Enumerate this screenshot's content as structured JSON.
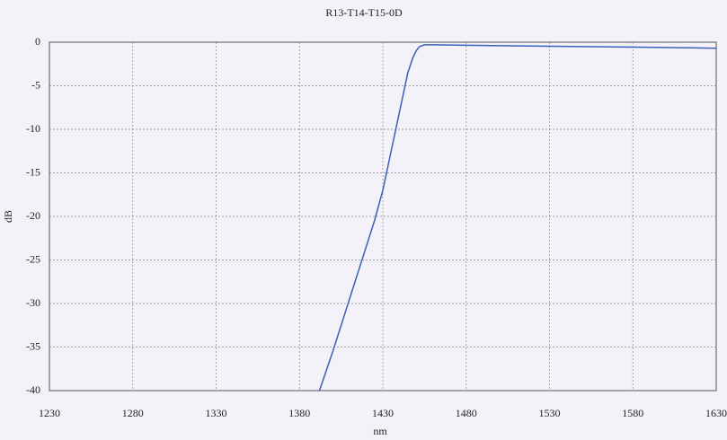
{
  "chart_data": {
    "type": "line",
    "title": "R13-T14-T15-0D",
    "x_label": "nm",
    "y_label": "dB",
    "x": [
      1392,
      1400,
      1410,
      1420,
      1425,
      1430,
      1435,
      1440,
      1445,
      1448,
      1450,
      1452,
      1455,
      1460,
      1500,
      1550,
      1600,
      1630
    ],
    "series": [
      {
        "name": "R13-T14-T15-0D",
        "color": "#3a5fb8",
        "values": [
          -40,
          -35.5,
          -29.5,
          -23.5,
          -20.5,
          -17,
          -12.5,
          -8,
          -3.5,
          -1.8,
          -1,
          -0.5,
          -0.3,
          -0.3,
          -0.4,
          -0.5,
          -0.6,
          -0.7
        ]
      }
    ],
    "xlim": [
      1230,
      1630
    ],
    "ylim": [
      -40,
      0
    ],
    "xticks": [
      1230,
      1280,
      1330,
      1380,
      1430,
      1480,
      1530,
      1580,
      1630
    ],
    "yticks": [
      0,
      -5,
      -10,
      -15,
      -20,
      -25,
      -30,
      -35,
      -40
    ],
    "grid": true
  }
}
